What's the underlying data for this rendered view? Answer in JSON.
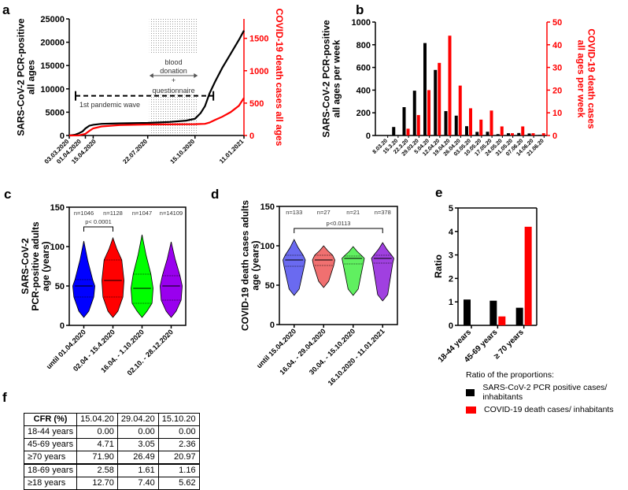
{
  "panel_labels": {
    "a": "a",
    "b": "b",
    "c": "c",
    "d": "d",
    "e": "e",
    "f": "f"
  },
  "chart_data": [
    {
      "id": "a",
      "type": "line",
      "ylabel": "SARS-CoV-2 PCR-positive\nall ages",
      "ylabel_right": "COVID-19 death cases all ages",
      "ylim": [
        0,
        25000
      ],
      "ylim_right": [
        0,
        1800
      ],
      "yticks": [
        0,
        5000,
        10000,
        15000,
        20000,
        25000
      ],
      "yticks_right": [
        0,
        500,
        1000,
        1500
      ],
      "x_unit": "days since 03.03.2020",
      "xlim": [
        0,
        314
      ],
      "xticks": [
        {
          "day": 0,
          "label": "03.03.2020"
        },
        {
          "day": 29,
          "label": "01.04.2020"
        },
        {
          "day": 43,
          "label": "15.04.2020"
        },
        {
          "day": 141,
          "label": "22.07.2020"
        },
        {
          "day": 226,
          "label": "15.10.2020"
        },
        {
          "day": 314,
          "label": "11.01.2021"
        }
      ],
      "series": [
        {
          "name": "SARS-CoV-2 PCR-positive",
          "color": "#000000",
          "axis": "left",
          "x": [
            0,
            10,
            17,
            24,
            29,
            36,
            43,
            58,
            90,
            141,
            180,
            210,
            226,
            236,
            244,
            252,
            262,
            275,
            290,
            305,
            314
          ],
          "y": [
            0,
            150,
            450,
            900,
            1500,
            2100,
            2300,
            2500,
            2600,
            2700,
            2900,
            3200,
            3600,
            4800,
            6300,
            9000,
            11500,
            14500,
            17500,
            20500,
            22500
          ]
        },
        {
          "name": "COVID-19 death cases",
          "color": "#ff0000",
          "axis": "right",
          "x": [
            0,
            17,
            29,
            36,
            43,
            58,
            90,
            141,
            226,
            244,
            252,
            262,
            275,
            290,
            305,
            314
          ],
          "y": [
            0,
            3,
            25,
            70,
            110,
            140,
            160,
            170,
            175,
            180,
            200,
            240,
            290,
            360,
            460,
            580
          ]
        }
      ],
      "shaded_period": {
        "from_day": 144,
        "to_day": 231
      },
      "annotations": {
        "blood": "blood",
        "donation": "donation",
        "plus": "+",
        "questionnaire": "questionnaire",
        "wave": "1st pandemic wave"
      },
      "wave_period": {
        "from_day": 0,
        "to_day": 235,
        "level": 8500
      }
    },
    {
      "id": "b",
      "type": "bar",
      "ylabel": "SARS-CoV-2 PCR-positive\nall ages per week",
      "ylabel_right": "COVID-19 death cases\nall ages per week",
      "ylim": [
        0,
        1000
      ],
      "ylim_right": [
        0,
        50
      ],
      "yticks": [
        0,
        200,
        400,
        600,
        800,
        1000
      ],
      "yticks_right": [
        0,
        10,
        20,
        30,
        40,
        50
      ],
      "categories": [
        "8.03.20",
        "15.3.20",
        "22.3.20",
        "29.03.20",
        "5.04.20",
        "12.04.20",
        "19.04.20",
        "26.04.20",
        "03.05.20",
        "10.05.20",
        "17.05.20",
        "24.05.20",
        "31.05.20",
        "07.06.20",
        "14.06.20",
        "21.06.20"
      ],
      "series": [
        {
          "name": "PCR-positive per week",
          "color": "#000000",
          "axis": "left",
          "values": [
            0,
            75,
            250,
            395,
            815,
            578,
            215,
            175,
            82,
            32,
            33,
            12,
            20,
            22,
            18,
            5
          ]
        },
        {
          "name": "death cases per week",
          "color": "#ff0000",
          "axis": "right",
          "values": [
            0,
            0,
            3,
            9,
            20,
            32,
            44,
            22,
            12,
            7,
            11,
            4,
            1,
            4,
            1,
            1
          ]
        }
      ]
    },
    {
      "id": "c",
      "type": "violin",
      "ylabel": "SARS-CoV-2\nPCR-positive adults\nage (years)",
      "ylim": [
        0,
        150
      ],
      "yticks": [
        0,
        50,
        100,
        150
      ],
      "categories": [
        "until 01.04.2020",
        "02.04 - 15.4.2020",
        "16.04. - 1.10.2020",
        "02.10. - 28.12.2020"
      ],
      "n_labels": [
        "n=1046",
        "n=1128",
        "n=1047",
        "n=14109"
      ],
      "colors": [
        "#0000ff",
        "#ff0000",
        "#00ff00",
        "#9900ee"
      ],
      "groups": [
        {
          "min": 18,
          "q1": 36,
          "median": 50,
          "q3": 58,
          "max": 107
        },
        {
          "min": 18,
          "q1": 36,
          "median": 57,
          "q3": 83,
          "max": 111
        },
        {
          "min": 18,
          "q1": 28,
          "median": 47,
          "q3": 65,
          "max": 115
        },
        {
          "min": 18,
          "q1": 32,
          "median": 50,
          "q3": 63,
          "max": 106
        }
      ],
      "bracket": {
        "from": 0,
        "to": 1,
        "label": "p< 0.0001",
        "level": 125
      }
    },
    {
      "id": "d",
      "type": "violin",
      "ylabel": "COVID-19 death cases adults\nage (years)",
      "ylim": [
        0,
        150
      ],
      "yticks": [
        0,
        50,
        100,
        150
      ],
      "categories": [
        "until 15.04.2020",
        "16.04. - 29.04.2020",
        "30.04. - 15.10.2020",
        "16.10.2020 - 11.01.2021"
      ],
      "n_labels": [
        "n=133",
        "n=27",
        "n=21",
        "n=378"
      ],
      "colors": [
        "#6a6af0",
        "#f07070",
        "#60f060",
        "#a040e0"
      ],
      "groups": [
        {
          "min": 45,
          "q1": 74,
          "median": 82,
          "q3": 88,
          "max": 108
        },
        {
          "min": 55,
          "q1": 75,
          "median": 82,
          "q3": 88,
          "max": 100
        },
        {
          "min": 45,
          "q1": 77,
          "median": 84,
          "q3": 87,
          "max": 99
        },
        {
          "min": 38,
          "q1": 78,
          "median": 84,
          "q3": 88,
          "max": 104
        }
      ],
      "bracket": {
        "from": 0,
        "to": 3,
        "label": "p<0.0113",
        "level": 122
      }
    },
    {
      "id": "e",
      "type": "bar",
      "ylabel": "Ratio",
      "ylim": [
        0,
        5
      ],
      "yticks": [
        0,
        1,
        2,
        3,
        4,
        5
      ],
      "categories": [
        "18-44 years",
        "45-69 years",
        "≥ 70 years"
      ],
      "series": [
        {
          "name": "SARS-CoV-2 PCR positive cases/ inhabitants",
          "color": "#000000",
          "values": [
            1.1,
            1.05,
            0.75
          ]
        },
        {
          "name": "COVID-19 death cases/ inhabitants",
          "color": "#ff0000",
          "values": [
            0,
            0.38,
            4.2
          ]
        }
      ],
      "legend_title": "Ratio of the proportions:"
    }
  ],
  "table_f": {
    "header": [
      "CFR (%)",
      "15.04.20",
      "29.04.20",
      "15.10.20"
    ],
    "rows": [
      [
        "18-44 years",
        "0.00",
        "0.00",
        "0.00"
      ],
      [
        "45-69 years",
        "4.71",
        "3.05",
        "2.36"
      ],
      [
        "≥70 years",
        "71.90",
        "26.49",
        "20.97"
      ],
      [
        "18-69 years",
        "2.58",
        "1.61",
        "1.16"
      ],
      [
        "≥18 years",
        "12.70",
        "7.40",
        "5.62"
      ]
    ]
  }
}
